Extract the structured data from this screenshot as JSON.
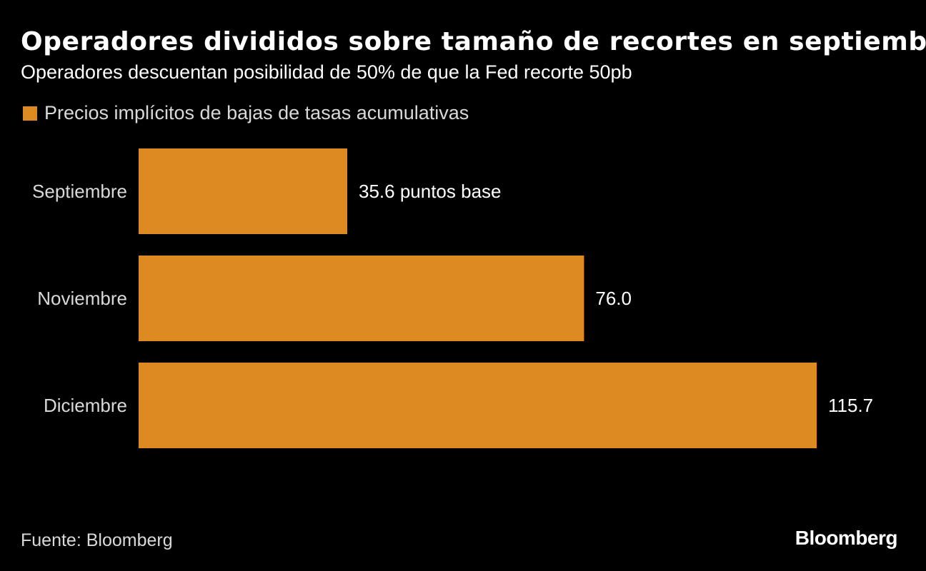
{
  "header": {
    "title": "Operadores divididos sobre tamaño de recortes en septiembre",
    "subtitle": "Operadores descuentan posibilidad de 50% de que la Fed recorte 50pb"
  },
  "footer": {
    "source": "Fuente: Bloomberg",
    "logo": "Bloomberg"
  },
  "colors": {
    "background": "#000000",
    "bar": "#de8a22",
    "text": "#ffffff",
    "muted_text": "#d9d9d9"
  },
  "chart_data": {
    "type": "bar",
    "orientation": "horizontal",
    "categories": [
      "Septiembre",
      "Noviembre",
      "Diciembre"
    ],
    "series": [
      {
        "name": "Precios implícitos de bajas de tasas acumulativas",
        "values": [
          35.6,
          76.0,
          115.7
        ]
      }
    ],
    "data_labels": [
      "35.6 puntos base",
      "76.0",
      "115.7"
    ],
    "xlim": [
      0,
      115.7
    ],
    "grid": false,
    "legend": "top-left"
  }
}
